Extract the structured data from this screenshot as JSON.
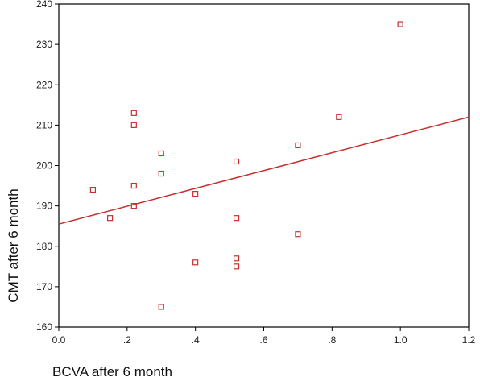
{
  "chart_data": {
    "type": "scatter",
    "title": "",
    "xlabel": "BCVA after 6 month",
    "ylabel": "CMT after 6 month",
    "xlim": [
      0,
      1.2
    ],
    "ylim": [
      160,
      240
    ],
    "x_ticks": [
      0,
      0.2,
      0.4,
      0.6,
      0.8,
      1.0,
      1.2
    ],
    "x_tick_labels": [
      "0.0",
      ".2",
      ".4",
      ".6",
      ".8",
      "1.0",
      "1.2"
    ],
    "y_ticks": [
      160,
      170,
      180,
      190,
      200,
      210,
      220,
      230,
      240
    ],
    "y_tick_labels": [
      "160",
      "170",
      "180",
      "190",
      "200",
      "210",
      "220",
      "230",
      "240"
    ],
    "grid": false,
    "legend": "none",
    "marker_color": "#c8302f",
    "line_color": "#c8302f",
    "series": [
      {
        "points": [
          {
            "x": 0.1,
            "y": 194
          },
          {
            "x": 0.15,
            "y": 187
          },
          {
            "x": 0.22,
            "y": 213
          },
          {
            "x": 0.22,
            "y": 210
          },
          {
            "x": 0.22,
            "y": 195
          },
          {
            "x": 0.22,
            "y": 190
          },
          {
            "x": 0.3,
            "y": 203
          },
          {
            "x": 0.3,
            "y": 198
          },
          {
            "x": 0.3,
            "y": 165
          },
          {
            "x": 0.4,
            "y": 193
          },
          {
            "x": 0.4,
            "y": 176
          },
          {
            "x": 0.52,
            "y": 201
          },
          {
            "x": 0.52,
            "y": 187
          },
          {
            "x": 0.52,
            "y": 177
          },
          {
            "x": 0.52,
            "y": 175
          },
          {
            "x": 0.7,
            "y": 205
          },
          {
            "x": 0.7,
            "y": 183
          },
          {
            "x": 0.82,
            "y": 212
          },
          {
            "x": 1.0,
            "y": 235
          }
        ]
      }
    ],
    "fit_line": {
      "x": [
        0,
        1.2
      ],
      "y": [
        185.5,
        212
      ]
    }
  }
}
